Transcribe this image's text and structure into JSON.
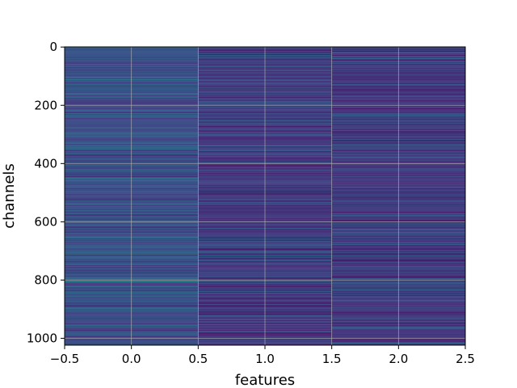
{
  "chart_data": {
    "type": "heatmap",
    "title": "",
    "xlabel": "features",
    "ylabel": "channels",
    "x_columns": [
      0,
      1,
      2
    ],
    "n_rows": 1024,
    "xlim": [
      -0.5,
      2.5
    ],
    "ylim": [
      1023.5,
      -0.5
    ],
    "y_inverted": true,
    "x_ticks": [
      "−0.5",
      "0.0",
      "0.5",
      "1.0",
      "1.5",
      "2.0",
      "2.5"
    ],
    "y_ticks": [
      "0",
      "200",
      "400",
      "600",
      "800",
      "1000"
    ],
    "colormap": "viridis",
    "grid": true,
    "bright_rows": [
      {
        "row": 15,
        "column": 0,
        "level": 0.55
      },
      {
        "row": 135,
        "column": 0,
        "level": 0.6
      },
      {
        "row": 160,
        "column": 0,
        "level": 0.5
      },
      {
        "row": 255,
        "column": 0,
        "level": 0.5
      },
      {
        "row": 350,
        "column": 0,
        "level": 0.6
      },
      {
        "row": 360,
        "column": 0,
        "level": 0.65
      },
      {
        "row": 475,
        "column": 0,
        "level": 0.7
      },
      {
        "row": 480,
        "column": 0,
        "level": 0.55
      },
      {
        "row": 640,
        "column": 0,
        "level": 0.5
      },
      {
        "row": 710,
        "column": 0,
        "level": 0.85
      },
      {
        "row": 805,
        "column": 0,
        "level": 0.55
      },
      {
        "row": 965,
        "column": 0,
        "level": 0.75
      },
      {
        "row": 345,
        "column": 2,
        "level": 0.5
      },
      {
        "row": 480,
        "column": 2,
        "level": 0.5
      },
      {
        "row": 795,
        "column": 2,
        "level": 0.45
      }
    ]
  }
}
